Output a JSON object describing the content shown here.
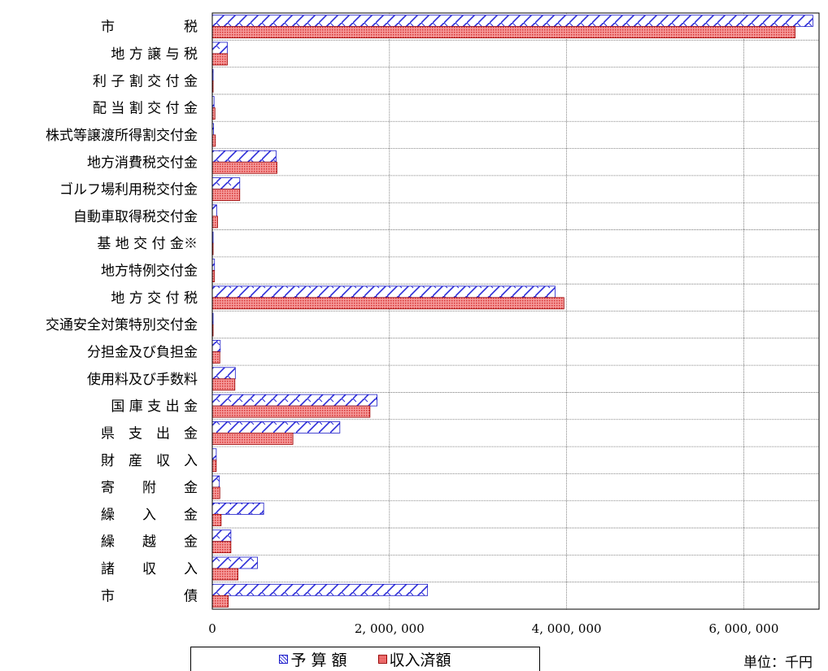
{
  "chart_data": {
    "type": "bar",
    "orientation": "horizontal",
    "categories": [
      "市　　　　　税",
      "地 方 譲 与 税",
      "利 子 割 交 付 金",
      "配 当 割 交 付 金",
      "株式等譲渡所得割交付金",
      "地方消費税交付金",
      "ゴルフ場利用税交付金",
      "自動車取得税交付金",
      "基 地 交 付 金※",
      "地方特例交付金",
      "地 方 交 付 税",
      "交通安全対策特別交付金",
      "分担金及び負担金",
      "使用料及び手数料",
      "国 庫 支 出 金",
      "県　支　出　金",
      "財　産　収　入",
      "寄　　附　　金",
      "繰　　入　　金",
      "繰　　越　　金",
      "諸　　収　　入",
      "市　　　　　債"
    ],
    "series": [
      {
        "name": "予 算 額",
        "color": "#2b2bd8",
        "values": [
          6780000,
          170000,
          8000,
          20000,
          15000,
          720000,
          310000,
          50000,
          4000,
          25000,
          3870000,
          6000,
          90000,
          260000,
          1860000,
          1440000,
          45000,
          80000,
          580000,
          210000,
          510000,
          2430000
        ]
      },
      {
        "name": "収入済額",
        "color": "#e54a4a",
        "values": [
          6580000,
          170000,
          8000,
          30000,
          35000,
          730000,
          310000,
          60000,
          4000,
          25000,
          3970000,
          6000,
          85000,
          255000,
          1780000,
          910000,
          45000,
          85000,
          100000,
          210000,
          290000,
          180000
        ]
      }
    ],
    "xlim": [
      0,
      6850000
    ],
    "xticks": [
      0,
      2000000,
      4000000,
      6000000
    ],
    "xtick_labels": [
      "0",
      "2, 000, 000",
      "4, 000, 000",
      "6, 000, 000"
    ],
    "grid": true,
    "legend_position": "bottom",
    "unit": "単位：千円"
  }
}
